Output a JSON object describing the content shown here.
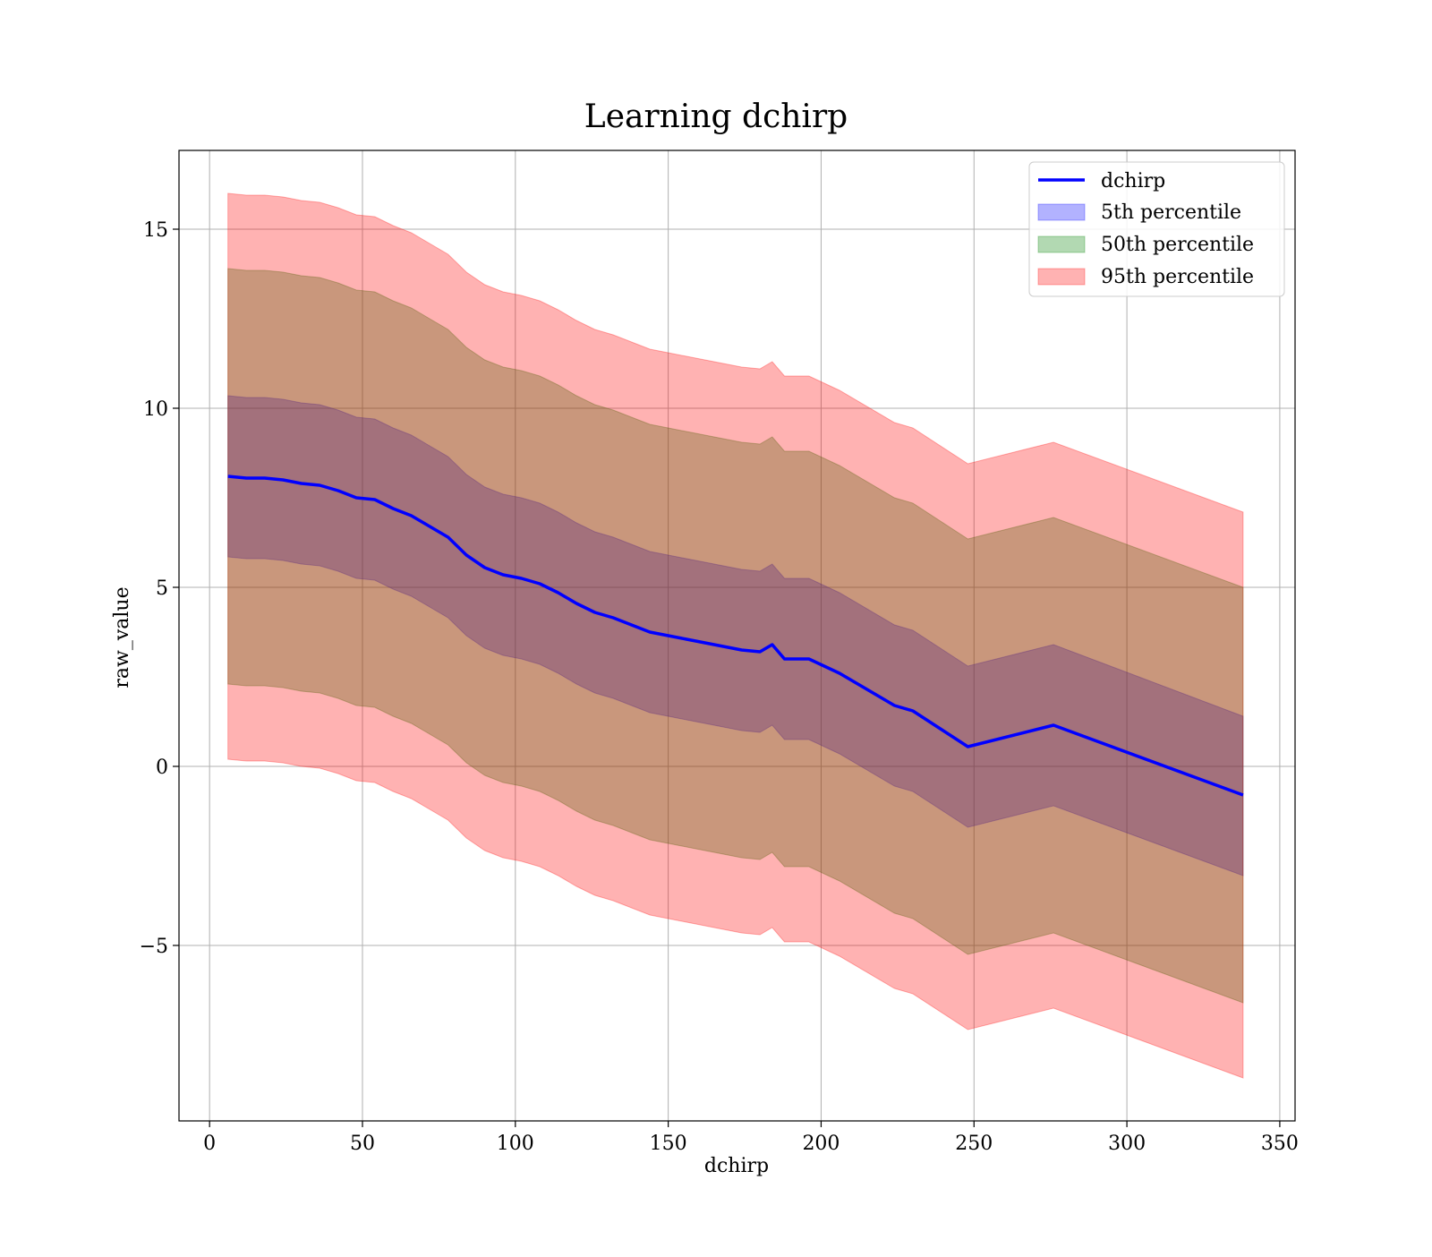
{
  "chart_data": {
    "type": "line",
    "title": "Learning dchirp",
    "xlabel": "dchirp",
    "ylabel": "raw_value",
    "xlim": [
      -10,
      355
    ],
    "ylim": [
      -9.9,
      17.2
    ],
    "xticks": [
      0,
      50,
      100,
      150,
      200,
      250,
      300,
      350
    ],
    "xtick_labels": [
      "0",
      "50",
      "100",
      "150",
      "200",
      "250",
      "300",
      "350"
    ],
    "yticks": [
      -5,
      0,
      5,
      10,
      15
    ],
    "ytick_labels": [
      "−5",
      "0",
      "5",
      "10",
      "15"
    ],
    "grid": true,
    "legend": "top-right",
    "x": [
      6,
      12,
      18,
      24,
      30,
      36,
      42,
      48,
      54,
      60,
      66,
      72,
      78,
      84,
      90,
      96,
      102,
      108,
      114,
      120,
      126,
      132,
      138,
      144,
      150,
      156,
      162,
      168,
      174,
      180,
      184,
      188,
      196,
      206,
      224,
      230,
      248,
      276,
      338
    ],
    "series": [
      {
        "name": "dchirp",
        "kind": "line",
        "color": "#0000ff",
        "values": [
          8.1,
          8.05,
          8.05,
          8.0,
          7.9,
          7.85,
          7.7,
          7.5,
          7.45,
          7.2,
          7.0,
          6.7,
          6.4,
          5.9,
          5.55,
          5.35,
          5.25,
          5.1,
          4.85,
          4.55,
          4.3,
          4.15,
          3.95,
          3.75,
          3.65,
          3.55,
          3.45,
          3.35,
          3.25,
          3.2,
          3.4,
          3.0,
          3.0,
          2.6,
          1.7,
          1.55,
          0.55,
          1.15,
          -0.8
        ]
      },
      {
        "name": "5th percentile",
        "kind": "band",
        "color": "#0000ff",
        "upper": [
          10.35,
          10.3,
          10.3,
          10.25,
          10.15,
          10.1,
          9.95,
          9.75,
          9.7,
          9.45,
          9.25,
          8.95,
          8.65,
          8.15,
          7.8,
          7.6,
          7.5,
          7.35,
          7.1,
          6.8,
          6.55,
          6.4,
          6.2,
          6.0,
          5.9,
          5.8,
          5.7,
          5.6,
          5.5,
          5.45,
          5.65,
          5.25,
          5.25,
          4.85,
          3.95,
          3.8,
          2.8,
          3.4,
          1.4
        ],
        "lower": [
          5.85,
          5.8,
          5.8,
          5.75,
          5.65,
          5.6,
          5.45,
          5.25,
          5.2,
          4.95,
          4.75,
          4.45,
          4.15,
          3.65,
          3.3,
          3.1,
          3.0,
          2.85,
          2.6,
          2.3,
          2.05,
          1.9,
          1.7,
          1.5,
          1.4,
          1.3,
          1.2,
          1.1,
          1.0,
          0.95,
          1.15,
          0.75,
          0.75,
          0.35,
          -0.55,
          -0.7,
          -1.7,
          -1.1,
          -3.05
        ]
      },
      {
        "name": "50th percentile",
        "kind": "band",
        "color": "#008000",
        "upper": [
          13.9,
          13.85,
          13.85,
          13.8,
          13.7,
          13.65,
          13.5,
          13.3,
          13.25,
          13.0,
          12.8,
          12.5,
          12.2,
          11.7,
          11.35,
          11.15,
          11.05,
          10.9,
          10.65,
          10.35,
          10.1,
          9.95,
          9.75,
          9.55,
          9.45,
          9.35,
          9.25,
          9.15,
          9.05,
          9.0,
          9.2,
          8.8,
          8.8,
          8.4,
          7.5,
          7.35,
          6.35,
          6.95,
          5.0
        ],
        "lower": [
          2.3,
          2.25,
          2.25,
          2.2,
          2.1,
          2.05,
          1.9,
          1.7,
          1.65,
          1.4,
          1.2,
          0.9,
          0.6,
          0.1,
          -0.25,
          -0.45,
          -0.55,
          -0.7,
          -0.95,
          -1.25,
          -1.5,
          -1.65,
          -1.85,
          -2.05,
          -2.15,
          -2.25,
          -2.35,
          -2.45,
          -2.55,
          -2.6,
          -2.4,
          -2.8,
          -2.8,
          -3.2,
          -4.1,
          -4.25,
          -5.25,
          -4.65,
          -6.6
        ]
      },
      {
        "name": "95th percentile",
        "kind": "band",
        "color": "#ff0000",
        "upper": [
          16.0,
          15.95,
          15.95,
          15.9,
          15.8,
          15.75,
          15.6,
          15.4,
          15.35,
          15.1,
          14.9,
          14.6,
          14.3,
          13.8,
          13.45,
          13.25,
          13.15,
          13.0,
          12.75,
          12.45,
          12.2,
          12.05,
          11.85,
          11.65,
          11.55,
          11.45,
          11.35,
          11.25,
          11.15,
          11.1,
          11.3,
          10.9,
          10.9,
          10.5,
          9.6,
          9.45,
          8.45,
          9.05,
          7.1
        ],
        "lower": [
          0.2,
          0.15,
          0.15,
          0.1,
          0.0,
          -0.05,
          -0.2,
          -0.4,
          -0.45,
          -0.7,
          -0.9,
          -1.2,
          -1.5,
          -2.0,
          -2.35,
          -2.55,
          -2.65,
          -2.8,
          -3.05,
          -3.35,
          -3.6,
          -3.75,
          -3.95,
          -4.15,
          -4.25,
          -4.35,
          -4.45,
          -4.55,
          -4.65,
          -4.7,
          -4.5,
          -4.9,
          -4.9,
          -5.3,
          -6.2,
          -6.35,
          -7.35,
          -6.75,
          -8.7
        ]
      }
    ]
  }
}
